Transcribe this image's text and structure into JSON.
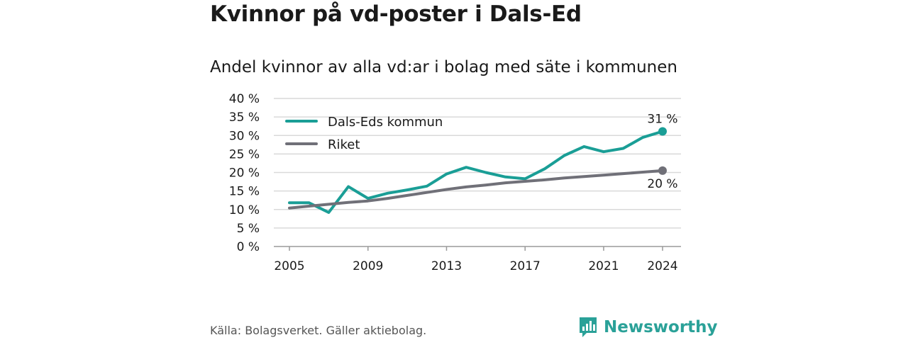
{
  "header": {
    "title": "Kvinnor på vd-poster i Dals-Ed",
    "subtitle": "Andel kvinnor av alla vd:ar i bolag med säte i kommunen"
  },
  "footer": {
    "source": "Källa: Bolagsverket. Gäller aktiebolag.",
    "brand": "Newsworthy",
    "brand_icon": "bar-chart-speech-bubble-icon"
  },
  "chart_data": {
    "type": "line",
    "title": "Kvinnor på vd-poster i Dals-Ed",
    "subtitle": "Andel kvinnor av alla vd:ar i bolag med säte i kommunen",
    "xlabel": "",
    "ylabel": "",
    "x": [
      2005,
      2006,
      2007,
      2008,
      2009,
      2010,
      2011,
      2012,
      2013,
      2014,
      2015,
      2016,
      2017,
      2018,
      2019,
      2020,
      2021,
      2022,
      2023,
      2024
    ],
    "x_ticks": [
      2005,
      2009,
      2013,
      2017,
      2021,
      2024
    ],
    "ylim": [
      0,
      40
    ],
    "y_ticks": [
      0,
      5,
      10,
      15,
      20,
      25,
      30,
      35,
      40
    ],
    "y_tick_labels": [
      "0 %",
      "5 %",
      "10 %",
      "15 %",
      "20 %",
      "25 %",
      "30 %",
      "35 %",
      "40 %"
    ],
    "grid": true,
    "legend": "top-left",
    "series": [
      {
        "name": "Dals-Eds kommun",
        "color": "#1a9e96",
        "values": [
          11.8,
          11.8,
          9.2,
          16.2,
          13.0,
          14.4,
          15.3,
          16.3,
          19.6,
          21.4,
          20.0,
          18.8,
          18.3,
          21.0,
          24.6,
          27.0,
          25.6,
          26.5,
          29.5,
          31.1
        ],
        "end_label": "31 %"
      },
      {
        "name": "Riket",
        "color": "#707078",
        "values": [
          10.4,
          10.9,
          11.4,
          11.9,
          12.3,
          13.0,
          13.8,
          14.6,
          15.4,
          16.1,
          16.6,
          17.2,
          17.6,
          18.0,
          18.5,
          18.9,
          19.3,
          19.7,
          20.1,
          20.5
        ],
        "end_label": "20 %"
      }
    ]
  }
}
